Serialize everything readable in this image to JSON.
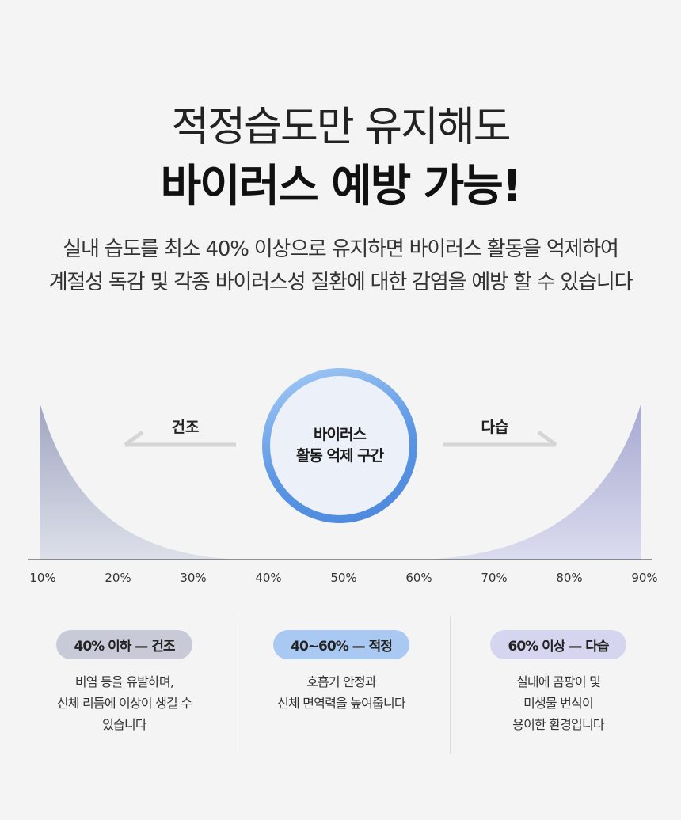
{
  "header": {
    "title_line1": "적정습도만 유지해도",
    "title_line2": "바이러스 예방 가능!",
    "desc_line1": "실내 습도를 최소 40% 이상으로 유지하면 바이러스 활동을 억제하여",
    "desc_line2": "계절성 독감 및 각종 바이러스성 질환에 대한 감염을 예방 할 수 있습니다"
  },
  "chart_data": {
    "type": "area",
    "x": [
      10,
      20,
      30,
      40,
      50,
      60,
      70,
      80,
      90
    ],
    "tick_labels": [
      "10%",
      "20%",
      "30%",
      "40%",
      "50%",
      "60%",
      "70%",
      "80%",
      "90%"
    ],
    "xlim": [
      10,
      90
    ],
    "grid": false,
    "zones": [
      {
        "label": "건조",
        "range": [
          10,
          40
        ],
        "color": "#aeb3c8"
      },
      {
        "label": "다습",
        "range": [
          60,
          90
        ],
        "color": "#b7b6db"
      }
    ],
    "center_label_line1": "바이러스",
    "center_label_line2": "활동 억제 구간"
  },
  "legend": [
    {
      "badge": "40% 이하 — 건조",
      "lines": [
        "비염 등을 유발하며,",
        "신체 리듬에 이상이 생길 수",
        "있습니다"
      ]
    },
    {
      "badge": "40~60% — 적정",
      "lines": [
        "호흡기 안정과",
        "신체 면역력을 높여줍니다"
      ]
    },
    {
      "badge": "60% 이상 — 다습",
      "lines": [
        "실내에 곰팡이 및",
        "미생물 번식이",
        "용이한 환경입니다"
      ]
    }
  ],
  "colors": {
    "dry": "#aeb3c8",
    "humid": "#b7b6db",
    "ring": "#5b96e4",
    "optimal_badge": "#a9c9f3"
  }
}
